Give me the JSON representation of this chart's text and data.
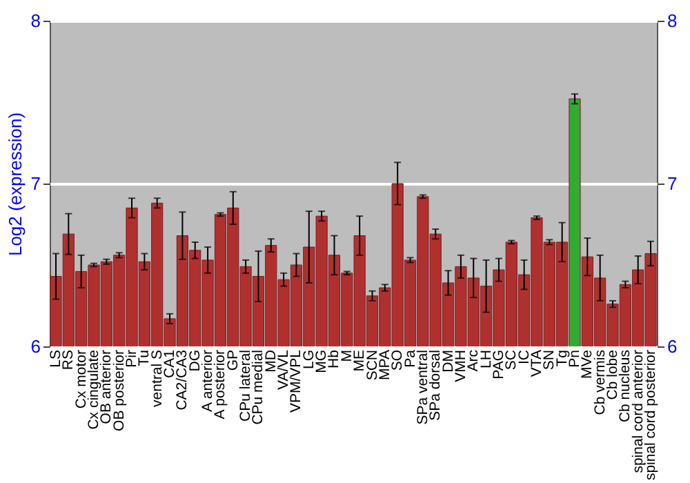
{
  "chart_data": {
    "type": "bar",
    "ylabel": "Log2 (expression)",
    "categories": [
      "LS",
      "RS",
      "Cx motor",
      "Cx cingulate",
      "OB anterior",
      "OB posterior",
      "Pir",
      "Tu",
      "ventral S",
      "CA1",
      "CA2/CA3",
      "DG",
      "A anterior",
      "A posterior",
      "GP",
      "CPu lateral",
      "CPu medial",
      "MD",
      "VA/VL",
      "VPM/VPL",
      "LG",
      "MG",
      "Hb",
      "M",
      "ME",
      "SCN",
      "MPA",
      "SO",
      "Pa",
      "SPa ventral",
      "SPa dorsal",
      "DM",
      "VMH",
      "Arc",
      "LH",
      "PAG",
      "SC",
      "IC",
      "VTA",
      "SN",
      "Tg",
      "Pn",
      "MVe",
      "Cb vermis",
      "Cb lobe",
      "Cb nucleus",
      "spinal cord anterior",
      "spinal cord posterior"
    ],
    "values": [
      6.43,
      6.69,
      6.46,
      6.5,
      6.52,
      6.56,
      6.85,
      6.52,
      6.88,
      6.17,
      6.68,
      6.59,
      6.53,
      6.81,
      6.85,
      6.49,
      6.43,
      6.62,
      6.41,
      6.5,
      6.61,
      6.8,
      6.56,
      6.45,
      6.68,
      6.31,
      6.36,
      7.0,
      6.53,
      6.92,
      6.69,
      6.39,
      6.49,
      6.42,
      6.37,
      6.47,
      6.64,
      6.44,
      6.79,
      6.64,
      6.64,
      7.52,
      6.55,
      6.42,
      6.26,
      6.38,
      6.47,
      6.57
    ],
    "errors": [
      0.14,
      0.125,
      0.1,
      0.01,
      0.015,
      0.015,
      0.06,
      0.05,
      0.03,
      0.03,
      0.145,
      0.05,
      0.08,
      0.01,
      0.1,
      0.04,
      0.155,
      0.04,
      0.04,
      0.07,
      0.22,
      0.03,
      0.12,
      0.01,
      0.12,
      0.03,
      0.02,
      0.13,
      0.015,
      0.01,
      0.03,
      0.075,
      0.07,
      0.12,
      0.16,
      0.07,
      0.01,
      0.09,
      0.01,
      0.015,
      0.12,
      0.03,
      0.115,
      0.14,
      0.02,
      0.02,
      0.085,
      0.075
    ],
    "colors": [
      "#b03030",
      "#b03030",
      "#b03030",
      "#b03030",
      "#b03030",
      "#b03030",
      "#b03030",
      "#b03030",
      "#b03030",
      "#b03030",
      "#b03030",
      "#b03030",
      "#b03030",
      "#b03030",
      "#b03030",
      "#b03030",
      "#b03030",
      "#b03030",
      "#b03030",
      "#b03030",
      "#b03030",
      "#b03030",
      "#b03030",
      "#b03030",
      "#b03030",
      "#b03030",
      "#b03030",
      "#b03030",
      "#b03030",
      "#b03030",
      "#b03030",
      "#b03030",
      "#b03030",
      "#b03030",
      "#b03030",
      "#b03030",
      "#b03030",
      "#b03030",
      "#b03030",
      "#b03030",
      "#b03030",
      "#33aa33",
      "#b03030",
      "#b03030",
      "#b03030",
      "#b03030",
      "#b03030",
      "#b03030"
    ],
    "ylim": [
      6,
      8
    ],
    "yticks": [
      6,
      7,
      8
    ],
    "y2lim": [
      6,
      8
    ],
    "y2ticks": [
      6,
      7,
      8
    ],
    "grid": true
  }
}
